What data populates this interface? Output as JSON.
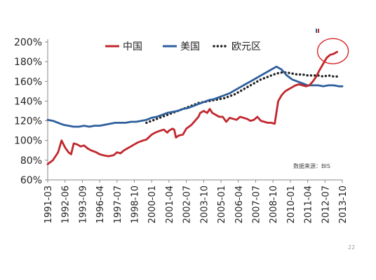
{
  "page_number": "22",
  "chart_data": {
    "type": "line",
    "ylim": [
      60,
      200
    ],
    "y_ticks": [
      "60%",
      "80%",
      "100%",
      "120%",
      "140%",
      "160%",
      "180%",
      "200%"
    ],
    "x_ticks": [
      "1991-03",
      "1992-06",
      "1993-09",
      "1996-04",
      "1997-07",
      "1998-10",
      "2000-01",
      "2001-04",
      "2002-07",
      "2003-10",
      "2005-01",
      "2006-04",
      "2007-07",
      "2008-10",
      "2010-01",
      "2011-04",
      "2012-07",
      "2013-10"
    ],
    "legend_position": "top",
    "source_note": "数据来源：BIS",
    "series": [
      {
        "name": "中国",
        "color": "#c1272d",
        "style": "solid",
        "points": [
          [
            0,
            76
          ],
          [
            0.3,
            80
          ],
          [
            0.6,
            88
          ],
          [
            0.8,
            100
          ],
          [
            1.0,
            93
          ],
          [
            1.2,
            88
          ],
          [
            1.35,
            86
          ],
          [
            1.5,
            97
          ],
          [
            1.7,
            96
          ],
          [
            1.9,
            94
          ],
          [
            2.1,
            95
          ],
          [
            2.3,
            92
          ],
          [
            2.5,
            90
          ],
          [
            2.8,
            88
          ],
          [
            3.0,
            86
          ],
          [
            3.2,
            85
          ],
          [
            3.5,
            84
          ],
          [
            3.8,
            85
          ],
          [
            4.0,
            88
          ],
          [
            4.2,
            87
          ],
          [
            4.4,
            90
          ],
          [
            4.6,
            92
          ],
          [
            4.8,
            94
          ],
          [
            5.0,
            96
          ],
          [
            5.2,
            98
          ],
          [
            5.5,
            100
          ],
          [
            5.7,
            101
          ],
          [
            6.0,
            106
          ],
          [
            6.2,
            108
          ],
          [
            6.5,
            110
          ],
          [
            6.7,
            111
          ],
          [
            6.9,
            108
          ],
          [
            7.0,
            110
          ],
          [
            7.2,
            112
          ],
          [
            7.3,
            111
          ],
          [
            7.4,
            103
          ],
          [
            7.55,
            105
          ],
          [
            7.8,
            106
          ],
          [
            8.0,
            112
          ],
          [
            8.3,
            116
          ],
          [
            8.5,
            120
          ],
          [
            8.7,
            124
          ],
          [
            8.8,
            128
          ],
          [
            9.0,
            130
          ],
          [
            9.2,
            128
          ],
          [
            9.35,
            132
          ],
          [
            9.5,
            128
          ],
          [
            9.7,
            126
          ],
          [
            9.9,
            124
          ],
          [
            10.1,
            124
          ],
          [
            10.3,
            119
          ],
          [
            10.5,
            123
          ],
          [
            10.7,
            122
          ],
          [
            10.9,
            121
          ],
          [
            11.1,
            124
          ],
          [
            11.3,
            123
          ],
          [
            11.5,
            122
          ],
          [
            11.7,
            120
          ],
          [
            11.9,
            121
          ],
          [
            12.1,
            124
          ],
          [
            12.3,
            120
          ],
          [
            12.5,
            119
          ],
          [
            12.7,
            118
          ],
          [
            12.9,
            118
          ],
          [
            13.1,
            117
          ],
          [
            13.3,
            140
          ],
          [
            13.5,
            146
          ],
          [
            13.7,
            150
          ],
          [
            13.9,
            152
          ],
          [
            14.1,
            154
          ],
          [
            14.3,
            156
          ],
          [
            14.5,
            157
          ],
          [
            14.7,
            156
          ],
          [
            14.9,
            155
          ],
          [
            15.1,
            156
          ],
          [
            15.3,
            160
          ],
          [
            15.5,
            165
          ],
          [
            15.7,
            172
          ],
          [
            15.9,
            178
          ],
          [
            16.1,
            184
          ],
          [
            16.3,
            187
          ],
          [
            16.5,
            188
          ],
          [
            16.7,
            190
          ]
        ]
      },
      {
        "name": "美国",
        "color": "#2e5f9c",
        "style": "solid",
        "points": [
          [
            0,
            121
          ],
          [
            0.3,
            120
          ],
          [
            0.6,
            118
          ],
          [
            0.9,
            116
          ],
          [
            1.2,
            115
          ],
          [
            1.5,
            114
          ],
          [
            1.8,
            114
          ],
          [
            2.1,
            115
          ],
          [
            2.4,
            114
          ],
          [
            2.7,
            115
          ],
          [
            3.0,
            115
          ],
          [
            3.3,
            116
          ],
          [
            3.6,
            117
          ],
          [
            3.9,
            118
          ],
          [
            4.2,
            118
          ],
          [
            4.5,
            118
          ],
          [
            4.8,
            119
          ],
          [
            5.1,
            119
          ],
          [
            5.4,
            120
          ],
          [
            5.7,
            121
          ],
          [
            6.0,
            123
          ],
          [
            6.3,
            124
          ],
          [
            6.6,
            126
          ],
          [
            6.9,
            128
          ],
          [
            7.2,
            129
          ],
          [
            7.5,
            130
          ],
          [
            7.8,
            132
          ],
          [
            8.1,
            133
          ],
          [
            8.4,
            135
          ],
          [
            8.7,
            137
          ],
          [
            9.0,
            139
          ],
          [
            9.3,
            141
          ],
          [
            9.6,
            142
          ],
          [
            9.9,
            144
          ],
          [
            10.2,
            146
          ],
          [
            10.5,
            148
          ],
          [
            10.8,
            151
          ],
          [
            11.1,
            154
          ],
          [
            11.4,
            157
          ],
          [
            11.7,
            160
          ],
          [
            12.0,
            163
          ],
          [
            12.3,
            166
          ],
          [
            12.6,
            169
          ],
          [
            12.9,
            172
          ],
          [
            13.2,
            175
          ],
          [
            13.5,
            172
          ],
          [
            13.8,
            166
          ],
          [
            14.1,
            162
          ],
          [
            14.4,
            160
          ],
          [
            14.7,
            158
          ],
          [
            15.0,
            156
          ],
          [
            15.3,
            156
          ],
          [
            15.6,
            156
          ],
          [
            15.9,
            155
          ],
          [
            16.2,
            156
          ],
          [
            16.5,
            156
          ],
          [
            16.8,
            155
          ],
          [
            17.0,
            155
          ]
        ]
      },
      {
        "name": "欧元区",
        "color": "#222222",
        "style": "dotted",
        "points": [
          [
            5.7,
            118
          ],
          [
            6.0,
            120
          ],
          [
            6.3,
            122
          ],
          [
            6.6,
            124
          ],
          [
            6.9,
            126
          ],
          [
            7.2,
            128
          ],
          [
            7.5,
            130
          ],
          [
            7.8,
            132
          ],
          [
            8.1,
            134
          ],
          [
            8.4,
            136
          ],
          [
            8.7,
            138
          ],
          [
            9.0,
            139
          ],
          [
            9.3,
            140
          ],
          [
            9.6,
            141
          ],
          [
            9.9,
            142
          ],
          [
            10.2,
            143
          ],
          [
            10.5,
            145
          ],
          [
            10.8,
            147
          ],
          [
            11.1,
            150
          ],
          [
            11.4,
            153
          ],
          [
            11.7,
            156
          ],
          [
            12.0,
            159
          ],
          [
            12.3,
            162
          ],
          [
            12.6,
            164
          ],
          [
            12.9,
            166
          ],
          [
            13.2,
            168
          ],
          [
            13.5,
            169
          ],
          [
            13.8,
            169
          ],
          [
            14.1,
            168
          ],
          [
            14.4,
            167
          ],
          [
            14.7,
            167
          ],
          [
            15.0,
            166
          ],
          [
            15.3,
            166
          ],
          [
            15.6,
            166
          ],
          [
            15.9,
            165
          ],
          [
            16.2,
            166
          ],
          [
            16.5,
            165
          ],
          [
            16.8,
            165
          ]
        ]
      }
    ]
  }
}
